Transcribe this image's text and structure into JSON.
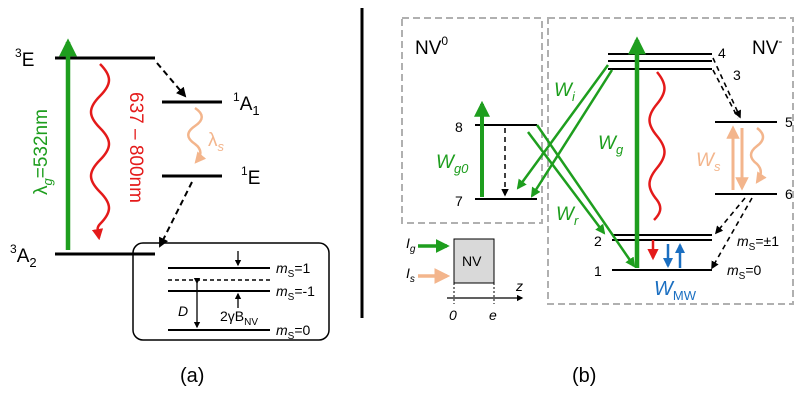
{
  "colors": {
    "green": "#1e9e1e",
    "red": "#e41a1a",
    "orange": "#f3b58c",
    "blue": "#1b6fc1",
    "gray_dashed": "#b0b0b0",
    "nv_box_fill": "#d9d9d9"
  },
  "panel_a": {
    "levels": {
      "excited_triplet": "3E",
      "ground_triplet": "3A2",
      "singlet_upper": "1A1",
      "singlet_lower": "1E"
    },
    "level_parts": {
      "e3_sup": "3",
      "e3_main": "E",
      "a2_sup": "3",
      "a2_main": "A",
      "a2_sub": "2",
      "a1_sup": "1",
      "a1_main": "A",
      "a1_sub": "1",
      "e1_sup": "1",
      "e1_main": "E"
    },
    "excitation": {
      "symbol": "λ",
      "sub": "g",
      "value": "=532nm"
    },
    "emission": {
      "text": "637 – 800nm"
    },
    "singlet_emission": {
      "symbol": "λ",
      "sub": "s"
    },
    "inset": {
      "ms1": {
        "prefix": "m",
        "sub": "S",
        "value": "=1"
      },
      "msm1": {
        "prefix": "m",
        "sub": "S",
        "value": "=-1"
      },
      "ms0": {
        "prefix": "m",
        "sub": "S",
        "value": "=0"
      },
      "D": "D",
      "zeeman": {
        "prefix": "2γB",
        "sub": "NV"
      }
    },
    "caption": "(a)"
  },
  "panel_b": {
    "nv0_box": {
      "title_main": "NV",
      "title_sup": "0",
      "level_upper": "8",
      "level_lower": "7",
      "rate_main": "W",
      "rate_sub": "g0"
    },
    "nvm_box": {
      "title_main": "NV",
      "title_sup": "-",
      "level_4": "4",
      "level_3": "3",
      "level_5": "5",
      "level_6": "6",
      "level_2": "2",
      "level_1": "1",
      "W_i": {
        "main": "W",
        "sub": "i"
      },
      "W_g": {
        "main": "W",
        "sub": "g"
      },
      "W_r": {
        "main": "W",
        "sub": "r"
      },
      "W_s": {
        "main": "W",
        "sub": "s"
      },
      "W_MW": {
        "main": "W",
        "sub": "MW"
      },
      "ms_pm1": {
        "prefix": "m",
        "sub": "S",
        "value": "=±1"
      },
      "ms_0": {
        "prefix": "m",
        "sub": "S",
        "value": "=0"
      }
    },
    "legend": {
      "Ig": {
        "main": "I",
        "sub": "g"
      },
      "Is": {
        "main": "I",
        "sub": "s"
      },
      "box_label": "NV",
      "axis_label": "z",
      "tick0": "0",
      "ticke": "e"
    },
    "caption": "(b)"
  }
}
